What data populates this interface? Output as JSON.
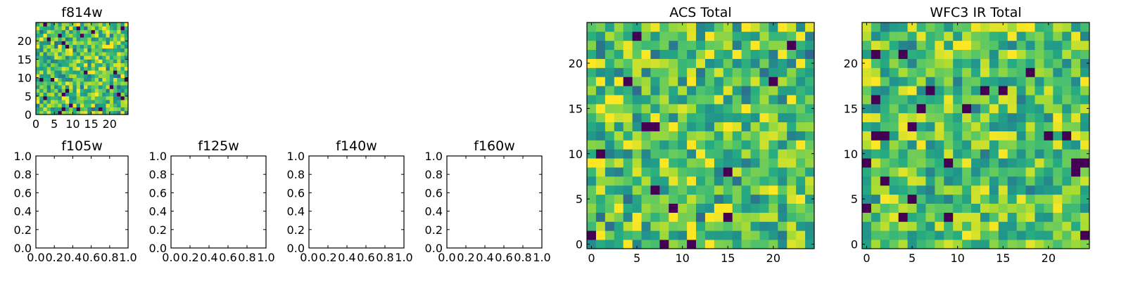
{
  "chart_data": [
    {
      "name": "f814w",
      "type": "heatmap",
      "title": "f814w",
      "x_ticks": [
        "0",
        "5",
        "10",
        "15",
        "20"
      ],
      "y_ticks": [
        "0",
        "5",
        "10",
        "15",
        "20"
      ],
      "xlim": [
        0,
        25
      ],
      "ylim": [
        0,
        25
      ],
      "grid_size": [
        25,
        25
      ],
      "colormap": "viridis",
      "seed": 814,
      "bias": 0.18
    },
    {
      "name": "f105w",
      "type": "heatmap",
      "title": "f105w",
      "x_ticks": [
        "0.0",
        "0.2",
        "0.4",
        "0.6",
        "0.8",
        "1.0"
      ],
      "y_ticks": [
        "0.0",
        "0.2",
        "0.4",
        "0.6",
        "0.8",
        "1.0"
      ],
      "xlim": [
        0,
        1
      ],
      "ylim": [
        0,
        1
      ],
      "empty": true
    },
    {
      "name": "f125w",
      "type": "heatmap",
      "title": "f125w",
      "x_ticks": [
        "0.0",
        "0.2",
        "0.4",
        "0.6",
        "0.8",
        "1.0"
      ],
      "y_ticks": [
        "0.0",
        "0.2",
        "0.4",
        "0.6",
        "0.8",
        "1.0"
      ],
      "xlim": [
        0,
        1
      ],
      "ylim": [
        0,
        1
      ],
      "empty": true
    },
    {
      "name": "f140w",
      "type": "heatmap",
      "title": "f140w",
      "x_ticks": [
        "0.0",
        "0.2",
        "0.4",
        "0.6",
        "0.8",
        "1.0"
      ],
      "y_ticks": [
        "0.0",
        "0.2",
        "0.4",
        "0.6",
        "0.8",
        "1.0"
      ],
      "xlim": [
        0,
        1
      ],
      "ylim": [
        0,
        1
      ],
      "empty": true
    },
    {
      "name": "f160w",
      "type": "heatmap",
      "title": "f160w",
      "x_ticks": [
        "0.0",
        "0.2",
        "0.4",
        "0.6",
        "0.8",
        "1.0"
      ],
      "y_ticks": [
        "0.0",
        "0.2",
        "0.4",
        "0.6",
        "0.8",
        "1.0"
      ],
      "xlim": [
        0,
        1
      ],
      "ylim": [
        0,
        1
      ],
      "empty": true
    },
    {
      "name": "ACS Total",
      "type": "heatmap",
      "title": "ACS Total",
      "x_ticks": [
        "0",
        "5",
        "10",
        "15",
        "20"
      ],
      "y_ticks": [
        "0",
        "5",
        "10",
        "15",
        "20"
      ],
      "xlim": [
        -0.5,
        24.5
      ],
      "ylim": [
        -0.5,
        24.5
      ],
      "grid_size": [
        25,
        25
      ],
      "colormap": "viridis",
      "seed": 21,
      "bias": 0.22
    },
    {
      "name": "WFC3 IR Total",
      "type": "heatmap",
      "title": "WFC3 IR Total",
      "x_ticks": [
        "0",
        "5",
        "10",
        "15",
        "20"
      ],
      "y_ticks": [
        "0",
        "5",
        "10",
        "15",
        "20"
      ],
      "xlim": [
        -0.5,
        24.5
      ],
      "ylim": [
        -0.5,
        24.5
      ],
      "grid_size": [
        25,
        25
      ],
      "colormap": "viridis",
      "seed": 47,
      "bias": 0.05
    }
  ]
}
